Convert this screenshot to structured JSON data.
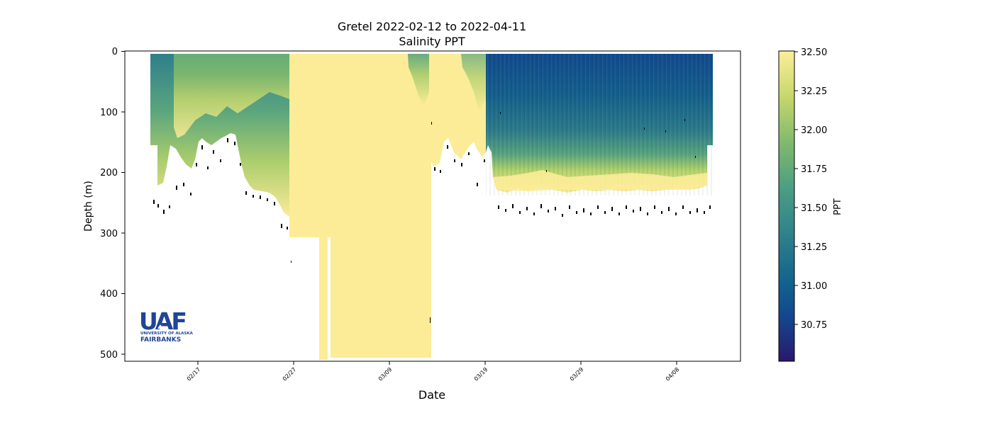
{
  "chart_data": {
    "type": "heatmap",
    "title": "Gretel 2022-02-12 to 2022-04-11",
    "subtitle": "Salinity PPT",
    "xlabel": "Date",
    "ylabel": "Depth (m)",
    "x_ticks": [
      "02/17",
      "02/27",
      "03/09",
      "03/19",
      "03/29",
      "04/08"
    ],
    "x_range": [
      "2022-02-12",
      "2022-04-11"
    ],
    "y_ticks": [
      0,
      100,
      200,
      300,
      400,
      500
    ],
    "ylim": [
      512,
      0
    ],
    "y_inverted": true,
    "colorbar": {
      "label": "PPT",
      "ticks": [
        "32.50",
        "32.25",
        "32.00",
        "31.75",
        "31.50",
        "31.25",
        "31.00",
        "30.75"
      ],
      "range": [
        30.53,
        32.5
      ],
      "colormap": "haline",
      "colors": [
        "#2a186c",
        "#13468f",
        "#11628d",
        "#2e7f8b",
        "#4a9c84",
        "#7fb86c",
        "#c5d66c",
        "#fdee99"
      ]
    },
    "profiles": [
      {
        "date": "2022-02-12",
        "max_depth": 205,
        "surface_ppt": 31.3,
        "deep_ppt": 32.0
      },
      {
        "date": "2022-02-14",
        "max_depth": 255,
        "surface_ppt": 31.2,
        "deep_ppt": 32.5
      },
      {
        "date": "2022-02-16",
        "max_depth": 205,
        "surface_ppt": 31.6,
        "deep_ppt": 32.5
      },
      {
        "date": "2022-02-18",
        "max_depth": 175,
        "surface_ppt": 31.9,
        "deep_ppt": 32.5
      },
      {
        "date": "2022-02-21",
        "max_depth": 150,
        "surface_ppt": 31.9,
        "deep_ppt": 32.5
      },
      {
        "date": "2022-02-24",
        "max_depth": 240,
        "surface_ppt": 32.0,
        "deep_ppt": 32.5
      },
      {
        "date": "2022-02-27",
        "max_depth": 305,
        "surface_ppt": 32.3,
        "deep_ppt": 32.5
      },
      {
        "date": "2022-03-03",
        "max_depth": 505,
        "surface_ppt": 32.5,
        "deep_ppt": 32.5
      },
      {
        "date": "2022-03-13",
        "max_depth": 505,
        "surface_ppt": 32.0,
        "deep_ppt": 32.5
      },
      {
        "date": "2022-03-16",
        "max_depth": 185,
        "surface_ppt": 32.2,
        "deep_ppt": 32.5
      },
      {
        "date": "2022-03-19",
        "max_depth": 210,
        "surface_ppt": 31.1,
        "deep_ppt": 32.5
      },
      {
        "date": "2022-03-26",
        "max_depth": 255,
        "surface_ppt": 31.0,
        "deep_ppt": 32.5
      },
      {
        "date": "2022-04-04",
        "max_depth": 255,
        "surface_ppt": 30.9,
        "deep_ppt": 32.5
      },
      {
        "date": "2022-04-10",
        "max_depth": 205,
        "surface_ppt": 31.0,
        "deep_ppt": 32.5
      }
    ]
  },
  "logo": {
    "mark": "UAF",
    "line1": "UNIVERSITY OF ALASKA",
    "line2": "FAIRBANKS"
  }
}
